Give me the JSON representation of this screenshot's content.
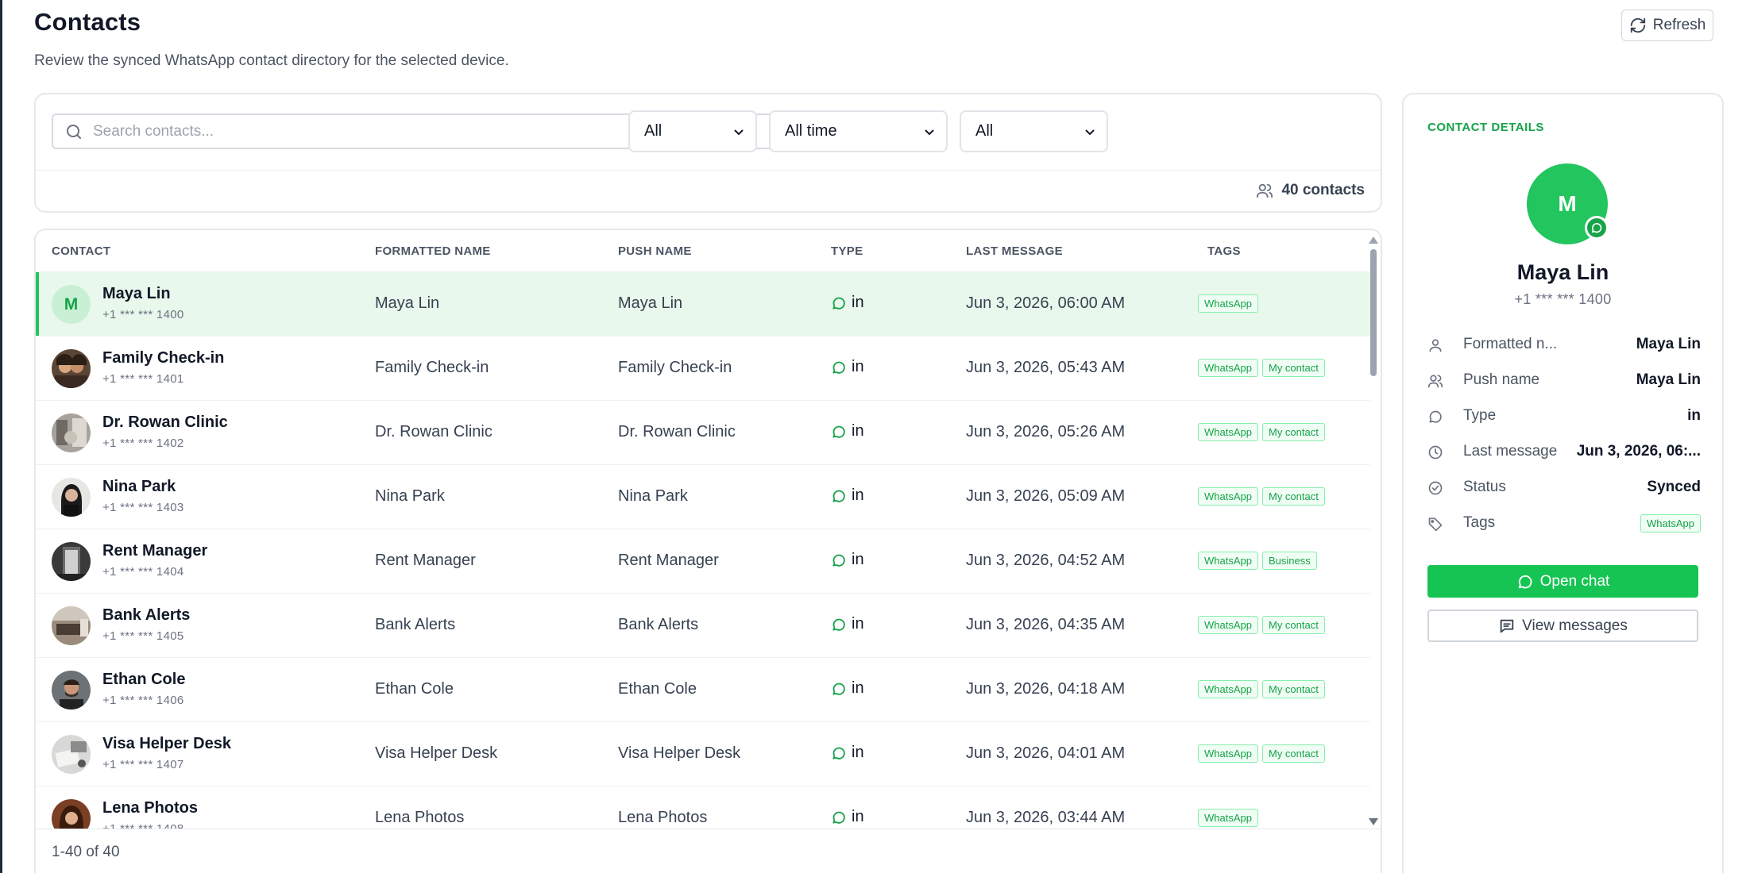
{
  "header": {
    "title": "Contacts",
    "subtitle": "Review the synced WhatsApp contact directory for the selected device.",
    "refresh_label": "Refresh"
  },
  "filters": {
    "search_placeholder": "Search contacts...",
    "type_value": "All",
    "time_value": "All time",
    "tag_value": "All",
    "count_label": "40 contacts"
  },
  "table": {
    "columns": [
      "CONTACT",
      "FORMATTED NAME",
      "PUSH NAME",
      "TYPE",
      "LAST MESSAGE",
      "TAGS"
    ],
    "rows": [
      {
        "name": "Maya Lin",
        "phone": "+1 *** *** 1400",
        "formatted": "Maya Lin",
        "push": "Maya Lin",
        "type": "in",
        "last": "Jun 3, 2026, 06:00 AM",
        "tags": [
          "WhatsApp"
        ],
        "avatar": "M",
        "photo": "",
        "selected": true
      },
      {
        "name": "Family Check-in",
        "phone": "+1 *** *** 1401",
        "formatted": "Family Check-in",
        "push": "Family Check-in",
        "type": "in",
        "last": "Jun 3, 2026, 05:43 AM",
        "tags": [
          "WhatsApp",
          "My contact"
        ],
        "avatar": "",
        "photo": "family-photo",
        "selected": false
      },
      {
        "name": "Dr. Rowan Clinic",
        "phone": "+1 *** *** 1402",
        "formatted": "Dr. Rowan Clinic",
        "push": "Dr. Rowan Clinic",
        "type": "in",
        "last": "Jun 3, 2026, 05:26 AM",
        "tags": [
          "WhatsApp",
          "My contact"
        ],
        "avatar": "",
        "photo": "clinic-photo",
        "selected": false
      },
      {
        "name": "Nina Park",
        "phone": "+1 *** *** 1403",
        "formatted": "Nina Park",
        "push": "Nina Park",
        "type": "in",
        "last": "Jun 3, 2026, 05:09 AM",
        "tags": [
          "WhatsApp",
          "My contact"
        ],
        "avatar": "",
        "photo": "woman-photo",
        "selected": false
      },
      {
        "name": "Rent Manager",
        "phone": "+1 *** *** 1404",
        "formatted": "Rent Manager",
        "push": "Rent Manager",
        "type": "in",
        "last": "Jun 3, 2026, 04:52 AM",
        "tags": [
          "WhatsApp",
          "Business"
        ],
        "avatar": "",
        "photo": "door-photo",
        "selected": false
      },
      {
        "name": "Bank Alerts",
        "phone": "+1 *** *** 1405",
        "formatted": "Bank Alerts",
        "push": "Bank Alerts",
        "type": "in",
        "last": "Jun 3, 2026, 04:35 AM",
        "tags": [
          "WhatsApp",
          "My contact"
        ],
        "avatar": "",
        "photo": "interior-photo",
        "selected": false
      },
      {
        "name": "Ethan Cole",
        "phone": "+1 *** *** 1406",
        "formatted": "Ethan Cole",
        "push": "Ethan Cole",
        "type": "in",
        "last": "Jun 3, 2026, 04:18 AM",
        "tags": [
          "WhatsApp",
          "My contact"
        ],
        "avatar": "",
        "photo": "man-photo",
        "selected": false
      },
      {
        "name": "Visa Helper Desk",
        "phone": "+1 *** *** 1407",
        "formatted": "Visa Helper Desk",
        "push": "Visa Helper Desk",
        "type": "in",
        "last": "Jun 3, 2026, 04:01 AM",
        "tags": [
          "WhatsApp",
          "My contact"
        ],
        "avatar": "",
        "photo": "desk-photo",
        "selected": false
      },
      {
        "name": "Lena Photos",
        "phone": "+1 *** *** 1408",
        "formatted": "Lena Photos",
        "push": "Lena Photos",
        "type": "in",
        "last": "Jun 3, 2026, 03:44 AM",
        "tags": [
          "WhatsApp"
        ],
        "avatar": "",
        "photo": "portrait-photo",
        "selected": false
      }
    ],
    "footer": "1-40 of 40"
  },
  "details": {
    "title": "CONTACT DETAILS",
    "avatar_letter": "M",
    "name": "Maya Lin",
    "phone": "+1 *** *** 1400",
    "fields": [
      {
        "label": "Formatted n...",
        "value": "Maya Lin",
        "icon": "user-icon"
      },
      {
        "label": "Push name",
        "value": "Maya Lin",
        "icon": "users-icon"
      },
      {
        "label": "Type",
        "value": "in",
        "icon": "chat-bubble-icon"
      },
      {
        "label": "Last message",
        "value": "Jun 3, 2026, 06:...",
        "icon": "clock-icon"
      },
      {
        "label": "Status",
        "value": "Synced",
        "icon": "check-circle-icon"
      },
      {
        "label": "Tags",
        "value": "",
        "icon": "tag-icon"
      }
    ],
    "tag": "WhatsApp",
    "open_chat_label": "Open chat",
    "view_messages_label": "View messages"
  },
  "colors": {
    "accent": "#16c453",
    "accent_dark": "#16a34a",
    "selected_row": "#e8f8ec",
    "tag_border": "#86efac"
  }
}
